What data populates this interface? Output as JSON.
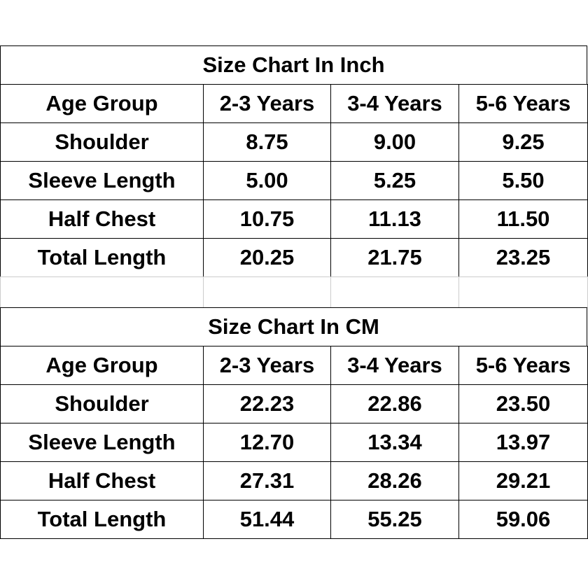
{
  "tables": [
    {
      "title": "Size Chart In Inch",
      "header": [
        "Age Group",
        "2-3 Years",
        "3-4 Years",
        "5-6 Years"
      ],
      "rows": [
        [
          "Shoulder",
          "8.75",
          "9.00",
          "9.25"
        ],
        [
          "Sleeve Length",
          "5.00",
          "5.25",
          "5.50"
        ],
        [
          "Half Chest",
          "10.75",
          "11.13",
          "11.50"
        ],
        [
          "Total Length",
          "20.25",
          "21.75",
          "23.25"
        ]
      ]
    },
    {
      "title": "Size Chart In CM",
      "header": [
        "Age Group",
        "2-3 Years",
        "3-4 Years",
        "5-6 Years"
      ],
      "rows": [
        [
          "Shoulder",
          "22.23",
          "22.86",
          "23.50"
        ],
        [
          "Sleeve Length",
          "12.70",
          "13.34",
          "13.97"
        ],
        [
          "Half Chest",
          "27.31",
          "28.26",
          "29.21"
        ],
        [
          "Total Length",
          "51.44",
          "55.25",
          "59.06"
        ]
      ]
    }
  ]
}
